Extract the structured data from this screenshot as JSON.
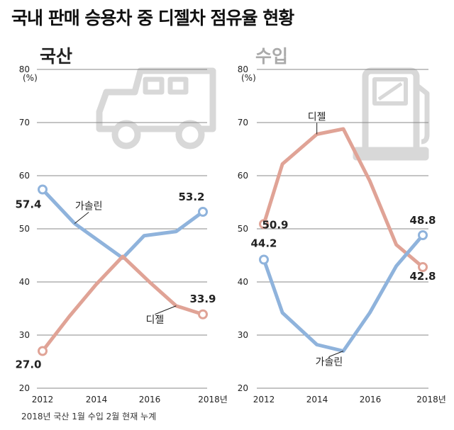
{
  "title": "국내 판매 승용차 중 디젤차 점유율 현황",
  "footnote": "2018년 국산 1월 수입 2월 현재 누계",
  "colors": {
    "diesel": "#e0a396",
    "gasoline": "#8fb3dc",
    "icon": "#d8d8d8",
    "grid": "#888888",
    "domestic_title": "#222222",
    "import_title": "#aaaaaa"
  },
  "chart_data": [
    {
      "type": "line",
      "title": "국산",
      "ylabel": "(%)",
      "ylim": [
        20,
        80
      ],
      "yticks": [
        "20",
        "30",
        "40",
        "50",
        "60",
        "70",
        "80"
      ],
      "x_ticks": [
        "2012",
        "2014",
        "2016",
        "2018년"
      ],
      "icon": "car-icon",
      "series": [
        {
          "name": "가솔린",
          "x": [
            2012,
            2013.2,
            2015,
            2015.8,
            2017,
            2018
          ],
          "values": [
            57.4,
            51,
            44.5,
            48.7,
            49.5,
            53.2
          ],
          "start_label": "57.4",
          "end_label": "53.2"
        },
        {
          "name": "디젤",
          "x": [
            2012,
            2013,
            2014,
            2015,
            2016,
            2017,
            2018
          ],
          "values": [
            27.0,
            33.5,
            39.5,
            44.8,
            40.0,
            35.5,
            33.9
          ],
          "start_label": "27.0",
          "end_label": "33.9"
        }
      ]
    },
    {
      "type": "line",
      "title": "수입",
      "ylabel": "(%)",
      "ylim": [
        20,
        80
      ],
      "yticks": [
        "20",
        "30",
        "40",
        "50",
        "60",
        "70",
        "80"
      ],
      "x_ticks": [
        "2012",
        "2014",
        "2016",
        "2018년"
      ],
      "icon": "fuel-pump-icon",
      "series": [
        {
          "name": "디젤",
          "x": [
            2012,
            2012.7,
            2014,
            2015,
            2016,
            2017,
            2018
          ],
          "values": [
            50.9,
            62.2,
            67.8,
            68.8,
            59,
            47,
            42.8
          ],
          "start_label": "50.9",
          "end_label": "42.8"
        },
        {
          "name": "가솔린",
          "x": [
            2012,
            2012.7,
            2014,
            2015,
            2016,
            2017,
            2018
          ],
          "values": [
            44.2,
            34.2,
            28.2,
            27,
            34.2,
            43,
            48.8
          ],
          "start_label": "44.2",
          "end_label": "48.8"
        }
      ]
    }
  ]
}
